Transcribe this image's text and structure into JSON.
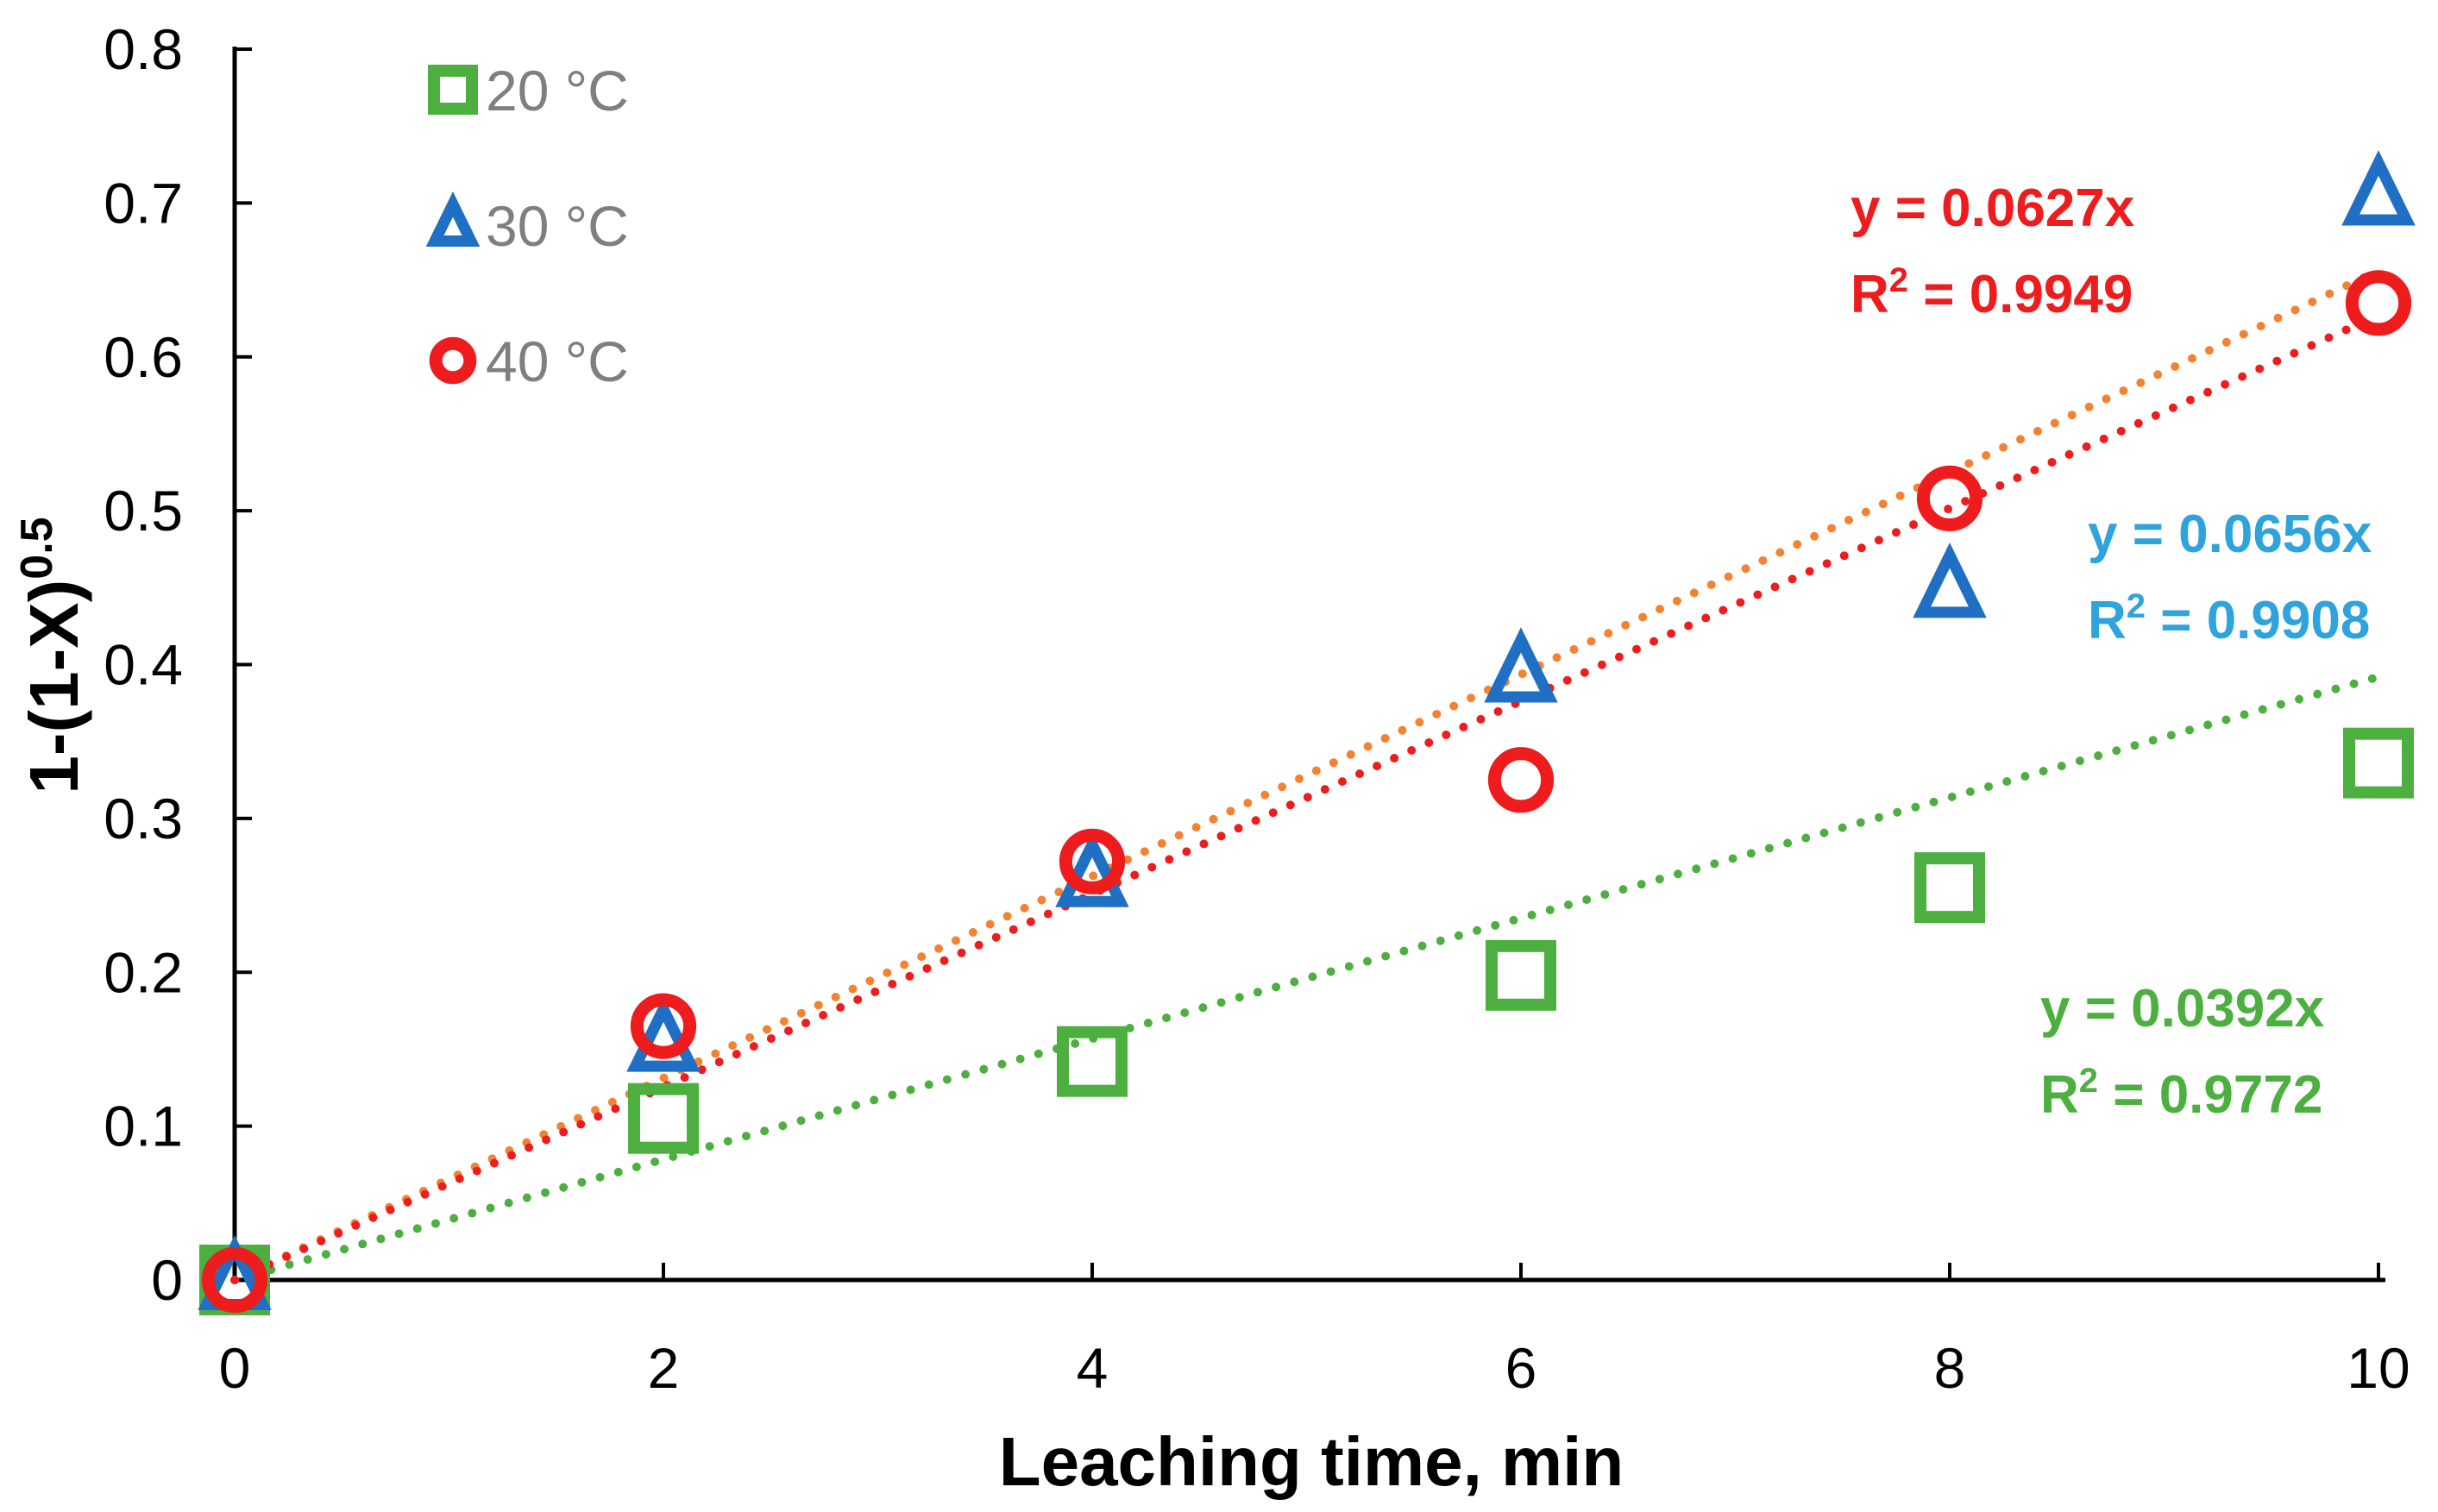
{
  "chart_data": {
    "type": "scatter",
    "title": "",
    "xlabel": "Leaching time, min",
    "ylabel": "1-(1-X)",
    "ylabel_exponent": "0.5",
    "xlim": [
      0,
      10
    ],
    "ylim": [
      0,
      0.8
    ],
    "x_ticks": [
      0,
      2,
      4,
      6,
      8,
      10
    ],
    "y_ticks": [
      0,
      0.1,
      0.2,
      0.3,
      0.4,
      0.5,
      0.6,
      0.7,
      0.8
    ],
    "x_tick_labels": [
      "0",
      "2",
      "4",
      "6",
      "8",
      "10"
    ],
    "y_tick_labels": [
      "0",
      "0.1",
      "0.2",
      "0.3",
      "0.4",
      "0.5",
      "0.6",
      "0.7",
      "0.8"
    ],
    "grid": false,
    "legend_position": "top-left",
    "series": [
      {
        "name": "20 °C",
        "marker": "square",
        "color": "#4caf3f",
        "trend_color": "#4caf3f",
        "x": [
          0,
          2,
          4,
          6,
          8,
          10
        ],
        "y": [
          0,
          0.105,
          0.142,
          0.198,
          0.255,
          0.336
        ],
        "fit_slope": 0.0392,
        "fit_equation": "y = 0.0392x",
        "fit_r2_prefix": "R",
        "fit_r2_value": " = 0.9772",
        "label_color": "#4caf3f"
      },
      {
        "name": "30 °C",
        "marker": "triangle",
        "color": "#1f6fc4",
        "trend_color": "#f58231",
        "x": [
          0,
          2,
          4,
          6,
          8,
          10
        ],
        "y": [
          0,
          0.155,
          0.262,
          0.395,
          0.45,
          0.705
        ],
        "fit_slope": 0.0656,
        "fit_equation": "y = 0.0656x",
        "fit_r2_prefix": "R",
        "fit_r2_value": " = 0.9908",
        "label_color": "#2ea3dc"
      },
      {
        "name": "40 °C",
        "marker": "circle",
        "color": "#ee1c1c",
        "trend_color": "#ee1c1c",
        "x": [
          0,
          2,
          4,
          6,
          8,
          10
        ],
        "y": [
          0,
          0.165,
          0.272,
          0.325,
          0.508,
          0.635
        ],
        "fit_slope": 0.0627,
        "fit_equation": "y = 0.0627x",
        "fit_r2_prefix": "R",
        "fit_r2_value": " = 0.9949",
        "label_color": "#ee1c1c"
      }
    ]
  }
}
